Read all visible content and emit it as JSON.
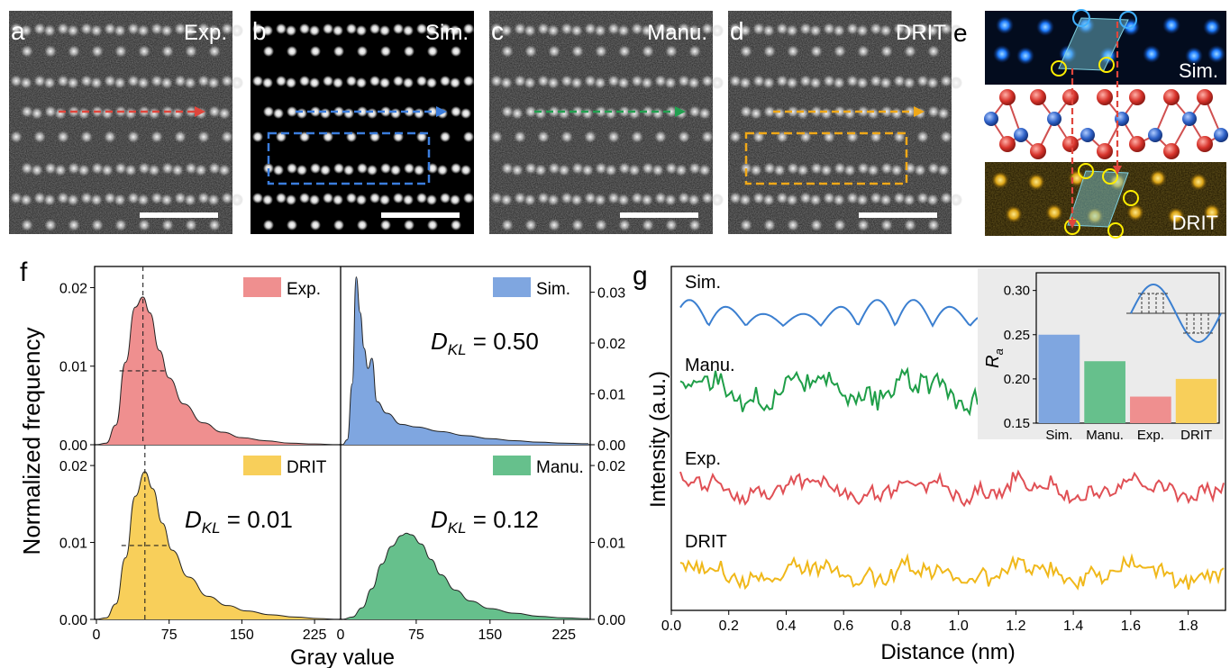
{
  "panels": {
    "a": {
      "letter": "a",
      "tag": "Exp.",
      "arrow_color": "#e0463c",
      "box": false
    },
    "b": {
      "letter": "b",
      "tag": "Sim.",
      "arrow_color": "#3b7ddd",
      "box": true,
      "box_color": "#3b7ddd"
    },
    "c": {
      "letter": "c",
      "tag": "Manu.",
      "arrow_color": "#22a050",
      "box": false
    },
    "d": {
      "letter": "d",
      "tag": "DRIT",
      "arrow_color": "#f0a818",
      "box": true,
      "box_color": "#f0a818"
    },
    "e": {
      "letter": "e",
      "sim_tag": "Sim.",
      "drit_tag": "DRIT"
    }
  },
  "colors": {
    "exp": "#ef8f8f",
    "sim": "#7fa6e0",
    "manu": "#66c08c",
    "drit": "#f8cf5a",
    "sim_line": "#3b7fd0",
    "manu_line": "#1f9e48",
    "exp_line": "#e05055",
    "drit_line": "#f0b81a"
  },
  "chart_data": [
    {
      "id": "f",
      "type": "area",
      "panel_letter": "f",
      "xlabel": "Gray value",
      "ylabel": "Normalized frequency",
      "xticks": [
        "0",
        "75",
        "150",
        "225"
      ],
      "xticks_right": [
        "0",
        "75",
        "150",
        "225"
      ],
      "subplots": [
        {
          "name": "Exp.",
          "position": "top-left",
          "color": "#ef8f8f",
          "ylim": [
            0,
            0.022
          ],
          "yticks": [
            "0.00",
            "0.01",
            "0.02"
          ],
          "tick_side": "left",
          "peak_x": 48,
          "peak_y": 0.0188,
          "dkl": null,
          "x": [
            0,
            10,
            20,
            30,
            40,
            48,
            55,
            65,
            75,
            90,
            110,
            130,
            150,
            175,
            200,
            225,
            250
          ],
          "y": [
            0,
            0.0002,
            0.0025,
            0.0105,
            0.0175,
            0.0188,
            0.0168,
            0.012,
            0.0085,
            0.0052,
            0.0028,
            0.0016,
            0.0009,
            0.0005,
            0.0002,
            0.0001,
            0
          ]
        },
        {
          "name": "Sim.",
          "position": "top-right",
          "color": "#7fa6e0",
          "ylim": [
            0,
            0.034
          ],
          "yticks": [
            "0.00",
            "0.01",
            "0.02",
            "0.03"
          ],
          "tick_side": "right",
          "dkl": "0.50",
          "x": [
            0,
            5,
            10,
            14,
            18,
            22,
            26,
            30,
            35,
            45,
            60,
            75,
            100,
            125,
            150,
            175,
            200,
            225,
            250
          ],
          "y": [
            0,
            0.001,
            0.012,
            0.033,
            0.026,
            0.019,
            0.015,
            0.017,
            0.0085,
            0.0062,
            0.004,
            0.0035,
            0.0026,
            0.0018,
            0.0012,
            0.0008,
            0.0005,
            0.0003,
            0.0002
          ]
        },
        {
          "name": "DRIT",
          "position": "bottom-left",
          "color": "#f8cf5a",
          "ylim": [
            0,
            0.022
          ],
          "yticks": [
            "0.00",
            "0.01",
            "0.02"
          ],
          "tick_side": "left",
          "peak_x": 50,
          "peak_y": 0.0192,
          "dkl": "0.01",
          "x": [
            0,
            10,
            20,
            30,
            40,
            50,
            58,
            68,
            78,
            95,
            115,
            135,
            155,
            180,
            205,
            230,
            250
          ],
          "y": [
            0,
            0.0002,
            0.002,
            0.008,
            0.016,
            0.0192,
            0.017,
            0.0125,
            0.009,
            0.0055,
            0.003,
            0.0018,
            0.0011,
            0.0006,
            0.0003,
            0.0001,
            0
          ]
        },
        {
          "name": "Manu.",
          "position": "bottom-right",
          "color": "#66c08c",
          "ylim": [
            0,
            0.022
          ],
          "yticks": [
            "0.00",
            "0.01",
            "0.02"
          ],
          "tick_side": "right",
          "dkl": "0.12",
          "x": [
            0,
            10,
            20,
            30,
            40,
            50,
            60,
            65,
            70,
            80,
            90,
            100,
            115,
            130,
            150,
            175,
            200,
            225,
            250
          ],
          "y": [
            0,
            0.0003,
            0.0015,
            0.004,
            0.0072,
            0.0095,
            0.0109,
            0.0112,
            0.011,
            0.0098,
            0.0078,
            0.0058,
            0.0038,
            0.0024,
            0.0014,
            0.0008,
            0.0004,
            0.0002,
            0.0001
          ]
        }
      ],
      "dkl_label": "D",
      "dkl_sub": "KL"
    },
    {
      "id": "g",
      "type": "line",
      "panel_letter": "g",
      "xlabel": "Distance (nm)",
      "ylabel": "Intensity (a.u.)",
      "xlim": [
        0,
        1.93
      ],
      "xticks": [
        "0.0",
        "0.2",
        "0.4",
        "0.6",
        "0.8",
        "1.0",
        "1.2",
        "1.4",
        "1.6",
        "1.8"
      ],
      "series": [
        {
          "name": "Sim.",
          "color": "#3b7fd0",
          "x_end": 1.07
        },
        {
          "name": "Manu.",
          "color": "#1f9e48",
          "x_end": 1.07
        },
        {
          "name": "Exp.",
          "color": "#e05055",
          "x_end": 1.93
        },
        {
          "name": "DRIT",
          "color": "#f0b81a",
          "x_end": 1.93
        }
      ],
      "inset": {
        "type": "bar",
        "categories": [
          "Sim.",
          "Manu.",
          "Exp.",
          "DRIT"
        ],
        "values": [
          0.25,
          0.22,
          0.18,
          0.2
        ],
        "colors": [
          "#7fa6e0",
          "#66c08c",
          "#ef8f8f",
          "#f8cf5a"
        ],
        "ylabel": "R",
        "ylabel_sub": "a",
        "ylim": [
          0.15,
          0.32
        ],
        "yticks": [
          "0.15",
          "0.20",
          "0.25",
          "0.30"
        ]
      }
    }
  ]
}
